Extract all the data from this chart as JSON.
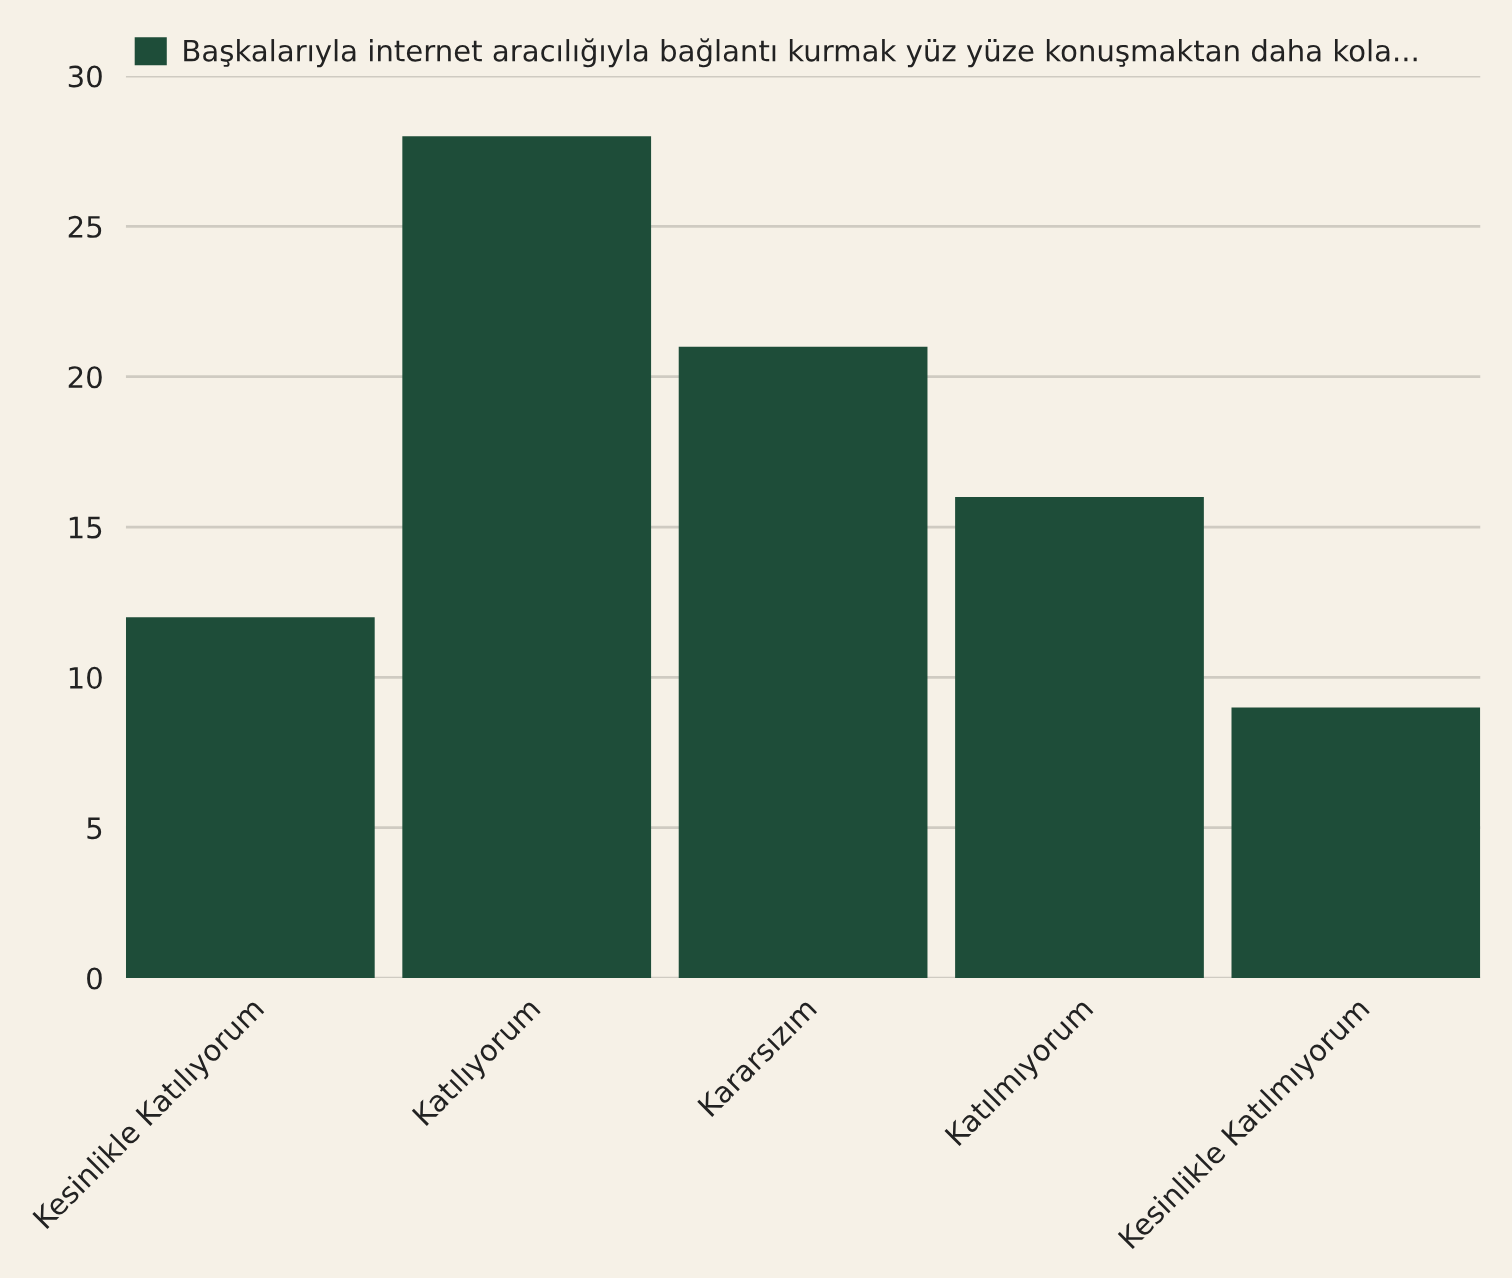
{
  "chart_data": {
    "type": "bar",
    "categories": [
      "Kesinlikle Katılıyorum",
      "Katılıyorum",
      "Kararsızım",
      "Katılmıyorum",
      "Kesinlikle Katılmıyorum"
    ],
    "series": [
      {
        "name": "Başkalarıyla internet aracılığıyla bağlantı kurmak yüz yüze konuşmaktan daha kola...",
        "color": "#1e4d39",
        "values": [
          12,
          28,
          21,
          16,
          9
        ]
      }
    ],
    "ylim": [
      0,
      30
    ],
    "yticks": [
      0,
      5,
      10,
      15,
      20,
      25,
      30
    ],
    "grid": "y",
    "legend": "top left"
  }
}
